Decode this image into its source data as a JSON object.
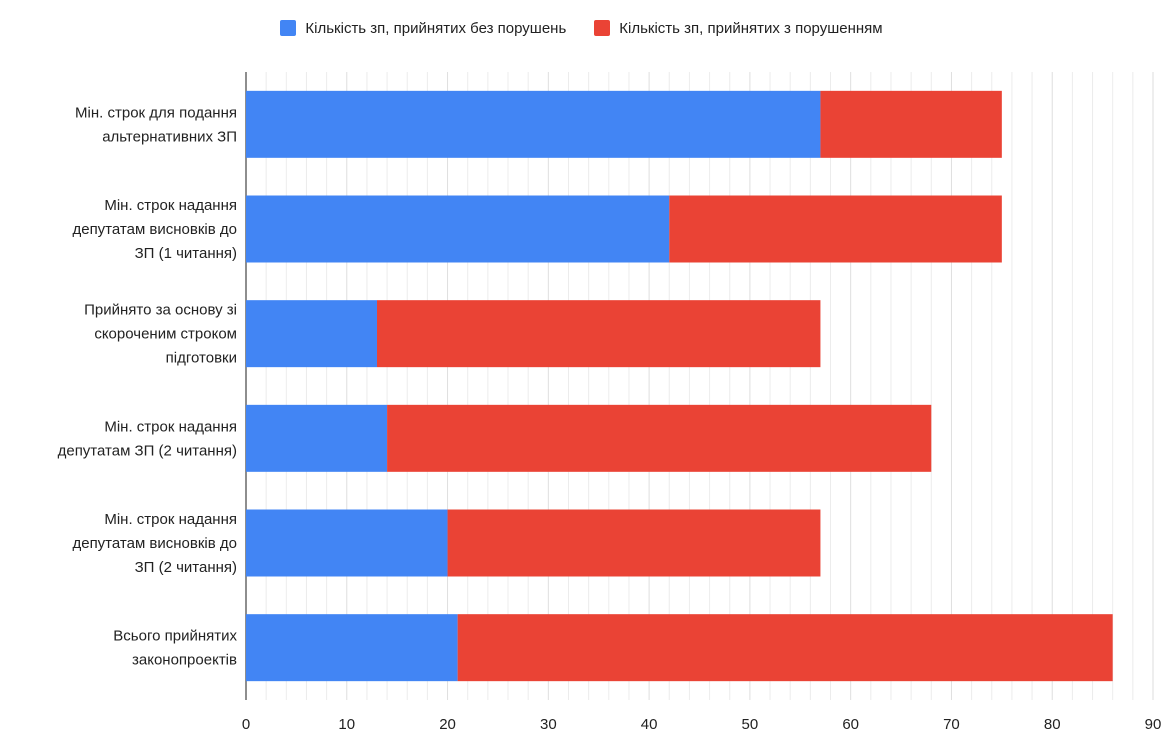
{
  "chart_data": {
    "type": "bar",
    "orientation": "horizontal",
    "stacked": true,
    "categories": [
      [
        "Мін. строк для подання",
        "альтернативних ЗП"
      ],
      [
        "Мін. строк надання",
        "депутатам висновків до",
        "ЗП (1 читання)"
      ],
      [
        "Прийнято за основу зі",
        "скороченим строком",
        "підготовки"
      ],
      [
        "Мін. строк надання",
        "депутатам ЗП (2 читання)"
      ],
      [
        "Мін. строк  надання",
        "депутатам висновків до",
        "ЗП (2 читання)"
      ],
      [
        "Всього прийнятих",
        "законопроектів"
      ]
    ],
    "series": [
      {
        "name": "Кількість зп, прийнятих без порушень",
        "color": "#4285F4",
        "values": [
          57,
          42,
          13,
          14,
          20,
          21
        ]
      },
      {
        "name": "Кількість зп, прийнятих з порушенням",
        "color": "#EA4335",
        "values": [
          18,
          33,
          44,
          54,
          37,
          65
        ]
      }
    ],
    "xlim": [
      0,
      90
    ],
    "x_ticks": [
      0,
      10,
      20,
      30,
      40,
      50,
      60,
      70,
      80,
      90
    ],
    "minor_step": 2,
    "grid": true,
    "legend_position": "top",
    "title": "",
    "xlabel": "",
    "ylabel": ""
  }
}
